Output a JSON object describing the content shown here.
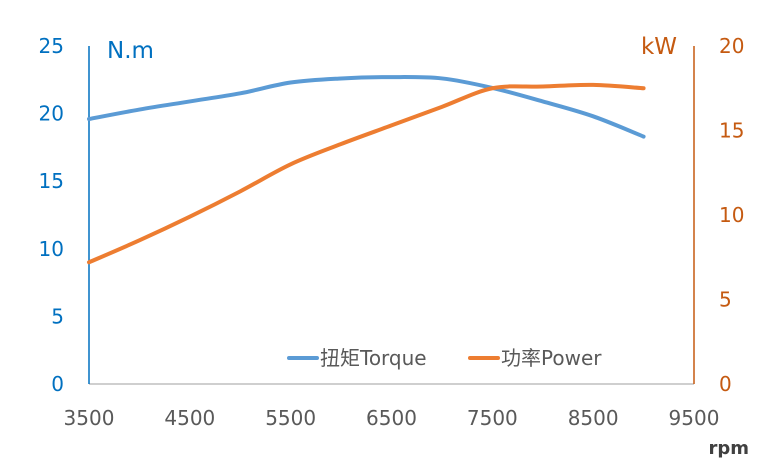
{
  "chart_data": {
    "type": "line",
    "x": [
      3500,
      4000,
      4500,
      5000,
      5500,
      6000,
      6500,
      7000,
      7500,
      8000,
      8500,
      9000
    ],
    "series": [
      {
        "name": "扭矩Torque",
        "axis": "left",
        "color": "#5B9BD5",
        "values": [
          19.6,
          20.3,
          20.9,
          21.5,
          22.3,
          22.6,
          22.7,
          22.6,
          21.9,
          20.9,
          19.8,
          18.3
        ]
      },
      {
        "name": "功率Power",
        "axis": "right",
        "color": "#ED7D31",
        "values": [
          7.2,
          8.5,
          9.9,
          11.4,
          13.0,
          14.2,
          15.3,
          16.4,
          17.5,
          17.6,
          17.7,
          17.5
        ]
      }
    ],
    "xlabel": "rpm",
    "ylabel_left": "N.m",
    "ylabel_right": "kW",
    "xlim": [
      3500,
      9500
    ],
    "ylim_left": [
      0,
      25
    ],
    "ylim_right": [
      0,
      20
    ],
    "xticks": [
      "3500",
      "4500",
      "5500",
      "6500",
      "7500",
      "8500",
      "9500"
    ],
    "yticks_left": [
      "0",
      "5",
      "10",
      "15",
      "20",
      "25"
    ],
    "yticks_right": [
      "0",
      "5",
      "10",
      "15",
      "20"
    ],
    "grid": false,
    "legend": "bottom-right",
    "left_axis_color": "#0070C0",
    "right_axis_color": "#C55A11"
  }
}
